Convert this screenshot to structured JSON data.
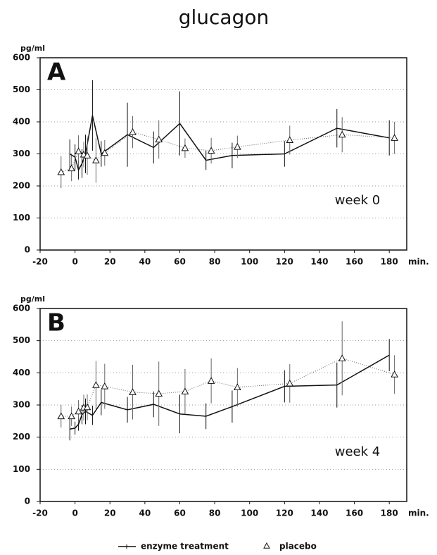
{
  "title": "glucagon",
  "chart_data": [
    {
      "type": "line",
      "label": "A",
      "note": "week 0",
      "ylabel": "pg/ml",
      "xlabel": "min.",
      "xlim": [
        -20,
        190
      ],
      "ylim": [
        0,
        600
      ],
      "xticks": [
        -20,
        0,
        20,
        40,
        60,
        80,
        100,
        120,
        140,
        160,
        180
      ],
      "yticks": [
        0,
        100,
        200,
        300,
        400,
        500,
        600
      ],
      "grid": true,
      "series": [
        {
          "name": "enzyme treatment",
          "color": "#111111",
          "style": "solid",
          "x": [
            -3,
            0,
            2,
            4,
            6,
            10,
            15,
            30,
            45,
            60,
            75,
            90,
            120,
            150,
            180
          ],
          "values": [
            300,
            290,
            250,
            270,
            300,
            420,
            300,
            360,
            320,
            395,
            280,
            295,
            300,
            380,
            350
          ],
          "errors": [
            45,
            40,
            30,
            45,
            60,
            110,
            40,
            100,
            50,
            100,
            30,
            40,
            40,
            60,
            55
          ]
        },
        {
          "name": "placebo",
          "color": "#666666",
          "style": "dotted",
          "x": [
            -8,
            -2,
            2,
            5,
            7,
            12,
            17,
            33,
            48,
            63,
            78,
            93,
            123,
            153,
            183
          ],
          "values": [
            243,
            255,
            308,
            298,
            295,
            280,
            303,
            368,
            345,
            318,
            310,
            322,
            343,
            360,
            350
          ],
          "errors": [
            50,
            40,
            50,
            40,
            60,
            70,
            40,
            50,
            60,
            30,
            40,
            35,
            45,
            55,
            50
          ]
        }
      ]
    },
    {
      "type": "line",
      "label": "B",
      "note": "week 4",
      "ylabel": "pg/ml",
      "xlabel": "min.",
      "xlim": [
        -20,
        190
      ],
      "ylim": [
        0,
        600
      ],
      "xticks": [
        -20,
        0,
        20,
        40,
        60,
        80,
        100,
        120,
        140,
        160,
        180
      ],
      "yticks": [
        0,
        100,
        200,
        300,
        400,
        500,
        600
      ],
      "grid": true,
      "series": [
        {
          "color": "#111111",
          "style": "solid",
          "x": [
            -3,
            0,
            2,
            4,
            6,
            10,
            15,
            30,
            45,
            60,
            75,
            90,
            120,
            150,
            180
          ],
          "values": [
            225,
            228,
            240,
            270,
            280,
            268,
            308,
            285,
            302,
            272,
            265,
            295,
            358,
            362,
            455
          ],
          "errors": [
            35,
            20,
            20,
            30,
            40,
            30,
            40,
            40,
            40,
            60,
            40,
            50,
            50,
            70,
            50
          ]
        },
        {
          "color": "#666666",
          "style": "dotted",
          "x": [
            -8,
            -2,
            2,
            5,
            7,
            12,
            17,
            33,
            48,
            63,
            78,
            93,
            123,
            153,
            183
          ],
          "values": [
            265,
            265,
            280,
            292,
            293,
            362,
            358,
            340,
            335,
            342,
            375,
            355,
            367,
            445,
            395
          ],
          "errors": [
            35,
            30,
            35,
            40,
            40,
            75,
            70,
            85,
            100,
            70,
            70,
            60,
            60,
            115,
            60
          ]
        }
      ]
    }
  ]
}
